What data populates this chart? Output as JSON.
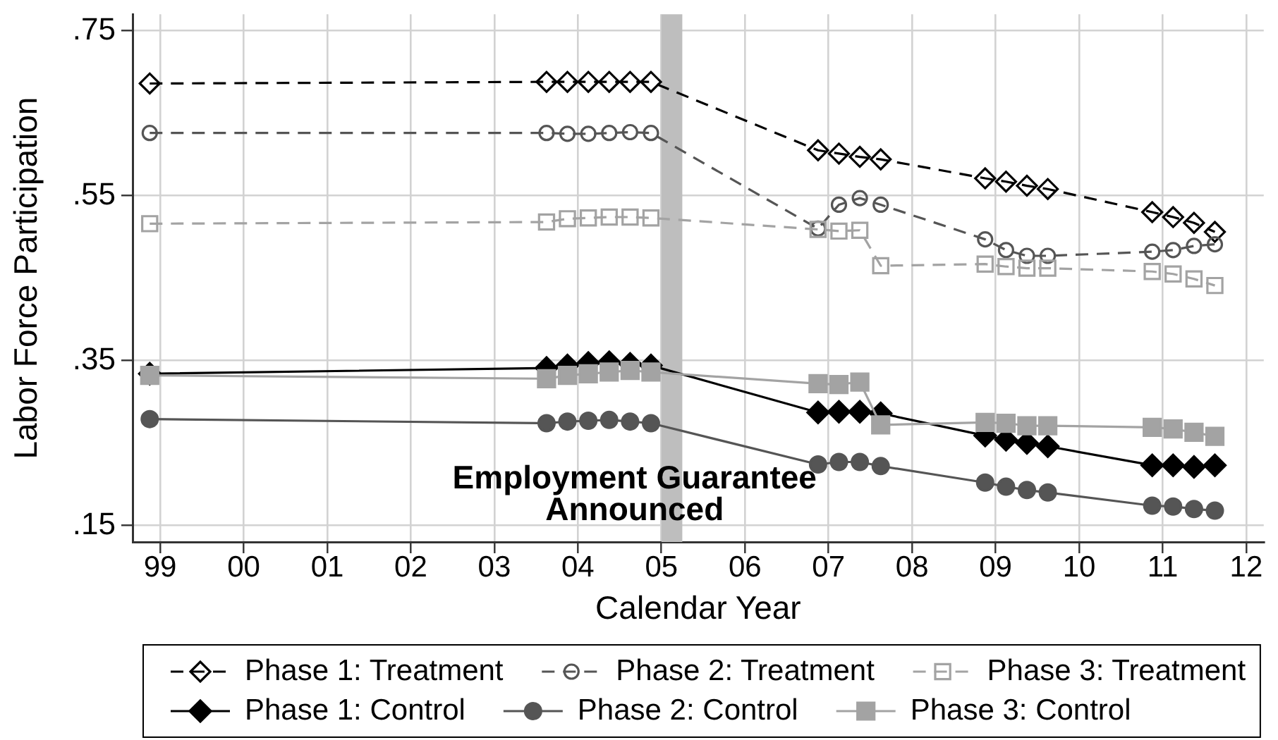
{
  "chart_data": {
    "type": "line",
    "xlabel": "Calendar Year",
    "ylabel": "Labor Force Participation",
    "x": [
      1998.875,
      2003.625,
      2003.875,
      2004.125,
      2004.375,
      2004.625,
      2004.875,
      2006.875,
      2007.125,
      2007.375,
      2007.625,
      2008.875,
      2009.125,
      2009.375,
      2009.625,
      2010.875,
      2011.125,
      2011.375,
      2011.625
    ],
    "xlim": [
      1998.67,
      2012.21
    ],
    "xticks": [
      {
        "value": 1999,
        "label": "99"
      },
      {
        "value": 2000,
        "label": "00"
      },
      {
        "value": 2001,
        "label": "01"
      },
      {
        "value": 2002,
        "label": "02"
      },
      {
        "value": 2003,
        "label": "03"
      },
      {
        "value": 2004,
        "label": "04"
      },
      {
        "value": 2005,
        "label": "05"
      },
      {
        "value": 2006,
        "label": "06"
      },
      {
        "value": 2007,
        "label": "07"
      },
      {
        "value": 2008,
        "label": "08"
      },
      {
        "value": 2009,
        "label": "09"
      },
      {
        "value": 2010,
        "label": "10"
      },
      {
        "value": 2011,
        "label": "11"
      },
      {
        "value": 2012,
        "label": "12"
      }
    ],
    "ylim": [
      0.13,
      0.77
    ],
    "yticks": [
      {
        "value": 0.15,
        "label": ".15"
      },
      {
        "value": 0.35,
        "label": ".35"
      },
      {
        "value": 0.55,
        "label": ".55"
      },
      {
        "value": 0.75,
        "label": ".75"
      }
    ],
    "grid": true,
    "legend": "bottom",
    "bands": [
      {
        "axis": "x",
        "from": 2005,
        "to": 2005.25,
        "label": "Employment Guarantee Announced",
        "color": "#bebebe"
      }
    ],
    "series": [
      {
        "name": "Phase 1: Treatment",
        "color": "#000000",
        "marker": "diamond",
        "line_style": "dashed",
        "values": [
          0.686,
          0.688,
          0.688,
          0.688,
          0.688,
          0.688,
          0.688,
          0.605,
          0.601,
          0.597,
          0.594,
          0.571,
          0.567,
          0.562,
          0.558,
          0.53,
          0.524,
          0.517,
          0.506
        ]
      },
      {
        "name": "Phase 2: Treatment",
        "color": "#555555",
        "marker": "circle",
        "line_style": "dashed",
        "values": [
          0.626,
          0.626,
          0.625,
          0.625,
          0.626,
          0.627,
          0.626,
          0.51,
          0.539,
          0.547,
          0.539,
          0.497,
          0.484,
          0.477,
          0.477,
          0.482,
          0.484,
          0.489,
          0.491
        ]
      },
      {
        "name": "Phase 3: Treatment",
        "color": "#a3a3a3",
        "marker": "square",
        "line_style": "dashed",
        "values": [
          0.516,
          0.518,
          0.522,
          0.523,
          0.524,
          0.524,
          0.523,
          0.509,
          0.507,
          0.508,
          0.465,
          0.467,
          0.464,
          0.462,
          0.462,
          0.458,
          0.455,
          0.449,
          0.441
        ]
      },
      {
        "name": "Phase 1: Control",
        "color": "#000000",
        "marker": "diamond",
        "line_style": "solid",
        "values": [
          0.334,
          0.341,
          0.344,
          0.347,
          0.348,
          0.346,
          0.344,
          0.287,
          0.288,
          0.288,
          0.286,
          0.259,
          0.254,
          0.25,
          0.246,
          0.223,
          0.223,
          0.221,
          0.223
        ]
      },
      {
        "name": "Phase 2: Control",
        "color": "#555555",
        "marker": "circle",
        "line_style": "solid",
        "values": [
          0.279,
          0.274,
          0.276,
          0.277,
          0.278,
          0.276,
          0.274,
          0.224,
          0.227,
          0.227,
          0.222,
          0.202,
          0.197,
          0.193,
          0.19,
          0.174,
          0.173,
          0.17,
          0.168
        ]
      },
      {
        "name": "Phase 3: Control",
        "color": "#a3a3a3",
        "marker": "square",
        "line_style": "solid",
        "values": [
          0.332,
          0.328,
          0.332,
          0.334,
          0.336,
          0.338,
          0.336,
          0.322,
          0.321,
          0.324,
          0.272,
          0.275,
          0.274,
          0.271,
          0.271,
          0.269,
          0.267,
          0.263,
          0.258
        ]
      }
    ]
  }
}
